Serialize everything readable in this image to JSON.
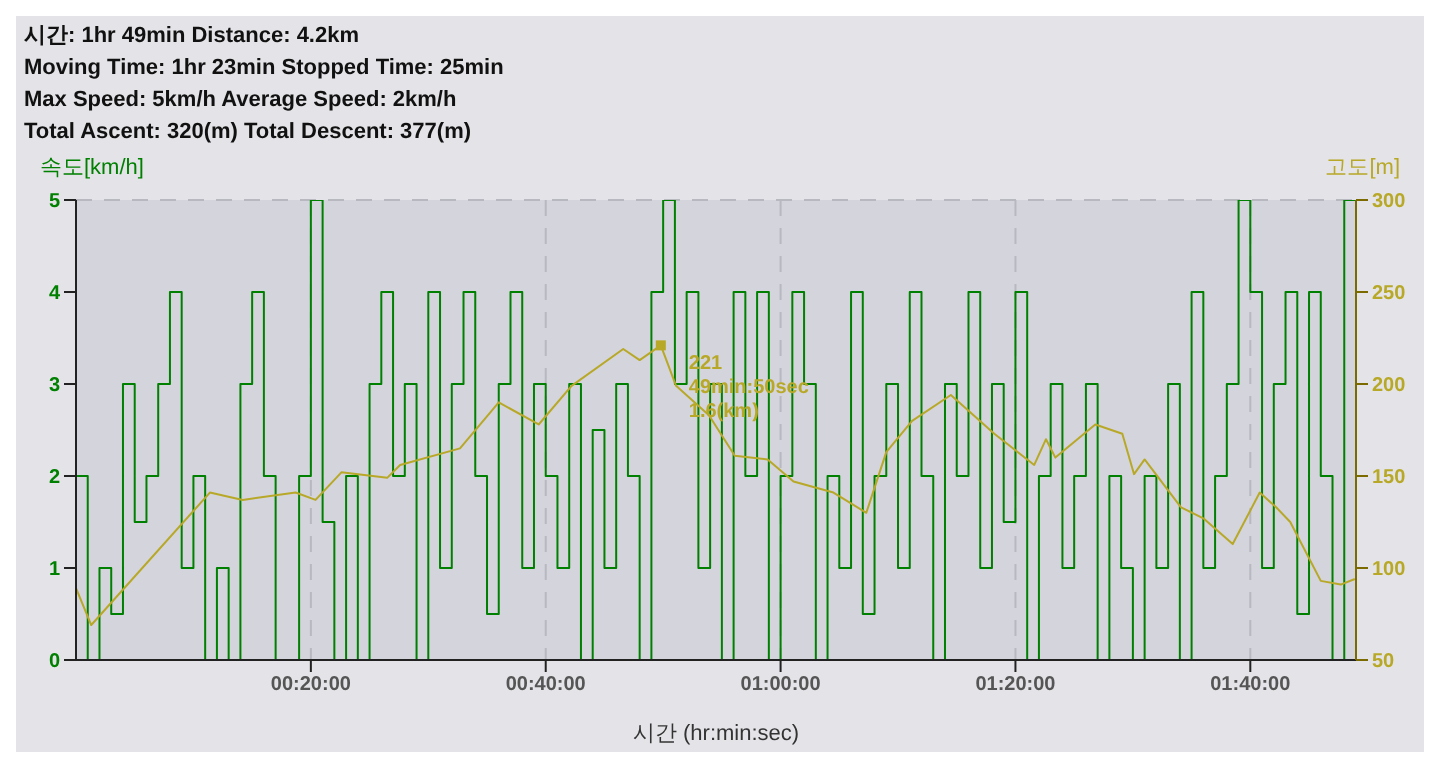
{
  "chart_data": {
    "type": "line",
    "annotations": [
      "시간: 1hr 49min   Distance: 4.2km",
      "Moving Time: 1hr 23min   Stopped Time: 25min",
      "Max Speed: 5km/h   Average Speed: 2km/h",
      "Total Ascent: 320(m)   Total Descent: 377(m)",
      "221\n49min:50sec\n1.6(km)"
    ],
    "xlabel": "시간 (hr:min:sec)",
    "ylabel": "속도[km/h]",
    "y2label": "고도[m]",
    "xlim": [
      0,
      109
    ],
    "xticks": [
      {
        "value": 20,
        "label": "00:20:00"
      },
      {
        "value": 40,
        "label": "00:40:00"
      },
      {
        "value": 60,
        "label": "01:00:00"
      },
      {
        "value": 80,
        "label": "01:20:00"
      },
      {
        "value": 100,
        "label": "01:40:00"
      }
    ],
    "ylim": [
      0,
      5
    ],
    "yticks": [
      0,
      1,
      2,
      3,
      4,
      5
    ],
    "y2lim": [
      50,
      300
    ],
    "y2ticks": [
      50,
      100,
      150,
      200,
      250,
      300
    ],
    "grid": true,
    "series": [
      {
        "type": "step",
        "color": "#008000",
        "x": [
          0,
          1,
          2,
          3,
          4,
          5,
          6,
          7,
          8,
          9,
          10,
          11,
          12,
          13,
          14,
          15,
          16,
          17,
          18,
          19,
          20,
          21,
          22,
          23,
          24,
          25,
          26,
          27,
          28,
          29,
          30,
          31,
          32,
          33,
          34,
          35,
          36,
          37,
          38,
          39,
          40,
          41,
          42,
          43,
          44,
          45,
          46,
          47,
          48,
          49,
          50,
          51,
          52,
          53,
          54,
          55,
          56,
          57,
          58,
          59,
          60,
          61,
          62,
          63,
          64,
          65,
          66,
          67,
          68,
          69,
          70,
          71,
          72,
          73,
          74,
          75,
          76,
          77,
          78,
          79,
          80,
          81,
          82,
          83,
          84,
          85,
          86,
          87,
          88,
          89,
          90,
          91,
          92,
          93,
          94,
          95,
          96,
          97,
          98,
          99,
          100,
          101,
          102,
          103,
          104,
          105,
          106,
          107,
          108,
          109
        ],
        "values": [
          2,
          0,
          1,
          0.5,
          3,
          1.5,
          2,
          3,
          4,
          1,
          2,
          0,
          1,
          0,
          3,
          4,
          2,
          0,
          0,
          2,
          5,
          1.5,
          0,
          2,
          0,
          3,
          4,
          2,
          3,
          0,
          4,
          1,
          3,
          4,
          2,
          0.5,
          3,
          4,
          1,
          3,
          2,
          1,
          3,
          0,
          2.5,
          1,
          3,
          2,
          0,
          4,
          5,
          3,
          4,
          1,
          3,
          0,
          4,
          2,
          4,
          0,
          2,
          4,
          3,
          0,
          2,
          1,
          4,
          0.5,
          2,
          3,
          1,
          4,
          2,
          0,
          3,
          2,
          4,
          1,
          3,
          1.5,
          4,
          0,
          2,
          3,
          1,
          2,
          3,
          0,
          2,
          1,
          0,
          2,
          1,
          3,
          0,
          4,
          1,
          2,
          3,
          5,
          4,
          1,
          3,
          4,
          0.5,
          4,
          2,
          0,
          5,
          5
        ]
      },
      {
        "color": "#b8a828",
        "axis": "y2",
        "x": [
          0,
          1.3,
          11.4,
          14.2,
          18.7,
          20.4,
          22.6,
          26.5,
          27.6,
          32.7,
          36,
          39.4,
          42.2,
          46.6,
          48,
          49.8,
          51.1,
          53.9,
          56.1,
          58.9,
          61.1,
          64.5,
          67.3,
          69,
          71.2,
          74.5,
          78.2,
          81.6,
          82.6,
          83.4,
          86.8,
          89.1,
          90.1,
          91,
          94.1,
          96,
          98.5,
          100.8,
          102.2,
          103.4,
          106,
          107.7,
          108.9
        ],
        "values": [
          89,
          69,
          141,
          137,
          141,
          137,
          152,
          149,
          156,
          165,
          190,
          178,
          199,
          219,
          213,
          221,
          199,
          183,
          161,
          159,
          147,
          141,
          130,
          163,
          180,
          194,
          173,
          156,
          170,
          160,
          178,
          173,
          151,
          159,
          133,
          127,
          113,
          141,
          133,
          125,
          93,
          91,
          94
        ]
      }
    ]
  }
}
